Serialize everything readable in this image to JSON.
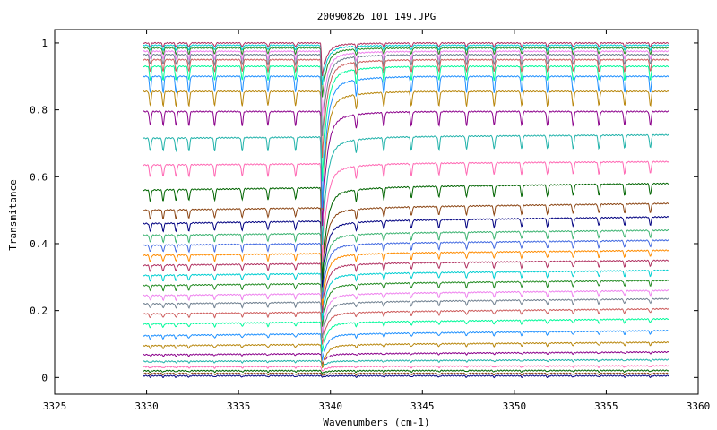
{
  "chart_data": {
    "type": "line",
    "title": "20090826_I01_149.JPG",
    "xlabel": "Wavenumbers (cm-1)",
    "ylabel": "Transmitance",
    "xlim": [
      3325,
      3360
    ],
    "ylim": [
      -0.05,
      1.04
    ],
    "x_ticks": [
      {
        "value": 3325,
        "label": "3325"
      },
      {
        "value": 3330,
        "label": "3330"
      },
      {
        "value": 3335,
        "label": "3335"
      },
      {
        "value": 3340,
        "label": "3340"
      },
      {
        "value": 3345,
        "label": "3345"
      },
      {
        "value": 3350,
        "label": "3350"
      },
      {
        "value": 3355,
        "label": "3355"
      },
      {
        "value": 3360,
        "label": "3360"
      }
    ],
    "y_ticks": [
      {
        "value": 0,
        "label": "0"
      },
      {
        "value": 0.2,
        "label": "0.2"
      },
      {
        "value": 0.4,
        "label": "0.4"
      },
      {
        "value": 0.6,
        "label": "0.6"
      },
      {
        "value": 0.8,
        "label": "0.8"
      },
      {
        "value": 1,
        "label": "1"
      }
    ],
    "grid": false,
    "legend": "none",
    "x_range": [
      3329.8,
      3358.4
    ],
    "main_absorption_center": 3339.55,
    "line_centers": [
      3330.2,
      3330.9,
      3331.6,
      3332.3,
      3333.7,
      3335.2,
      3336.6,
      3338.1,
      3341.4,
      3342.9,
      3344.4,
      3345.9,
      3347.4,
      3348.9,
      3350.4,
      3351.8,
      3353.2,
      3354.6,
      3356.0,
      3357.4
    ],
    "colors": [
      "#000080",
      "#8b4513",
      "#006400",
      "#ff69b4",
      "#20b2aa",
      "#8b008b",
      "#b8860b",
      "#1e90ff",
      "#00fa9a",
      "#cd5c5c",
      "#708090",
      "#ee82ee",
      "#228b22",
      "#00ced1",
      "#b03060",
      "#ff8c00",
      "#4169e1",
      "#3cb371"
    ],
    "series": [
      {
        "base": 0.005,
        "tilt": 0.0,
        "dip": 0.003
      },
      {
        "base": 0.012,
        "tilt": 0.0,
        "dip": 0.005
      },
      {
        "base": 0.02,
        "tilt": 0.001,
        "dip": 0.008
      },
      {
        "base": 0.032,
        "tilt": 0.003,
        "dip": 0.015
      },
      {
        "base": 0.048,
        "tilt": 0.005,
        "dip": 0.02
      },
      {
        "base": 0.068,
        "tilt": 0.008,
        "dip": 0.03
      },
      {
        "base": 0.095,
        "tilt": 0.01,
        "dip": 0.07
      },
      {
        "base": 0.125,
        "tilt": 0.015,
        "dip": 0.08
      },
      {
        "base": 0.16,
        "tilt": 0.015,
        "dip": 0.09
      },
      {
        "base": 0.19,
        "tilt": 0.015,
        "dip": 0.1
      },
      {
        "base": 0.22,
        "tilt": 0.015,
        "dip": 0.11
      },
      {
        "base": 0.245,
        "tilt": 0.015,
        "dip": 0.12
      },
      {
        "base": 0.275,
        "tilt": 0.015,
        "dip": 0.13
      },
      {
        "base": 0.305,
        "tilt": 0.015,
        "dip": 0.14
      },
      {
        "base": 0.335,
        "tilt": 0.015,
        "dip": 0.15
      },
      {
        "base": 0.365,
        "tilt": 0.015,
        "dip": 0.16
      },
      {
        "base": 0.395,
        "tilt": 0.015,
        "dip": 0.17
      },
      {
        "base": 0.425,
        "tilt": 0.015,
        "dip": 0.18
      },
      {
        "base": 0.46,
        "tilt": 0.02,
        "dip": 0.2
      },
      {
        "base": 0.5,
        "tilt": 0.02,
        "dip": 0.22
      },
      {
        "base": 0.56,
        "tilt": 0.02,
        "dip": 0.28
      },
      {
        "base": 0.635,
        "tilt": 0.01,
        "dip": 0.3
      },
      {
        "base": 0.715,
        "tilt": 0.01,
        "dip": 0.33
      },
      {
        "base": 0.795,
        "tilt": 0.0,
        "dip": 0.35
      },
      {
        "base": 0.855,
        "tilt": 0.0,
        "dip": 0.36
      },
      {
        "base": 0.9,
        "tilt": 0.0,
        "dip": 0.4
      },
      {
        "base": 0.93,
        "tilt": 0.0,
        "dip": 0.35
      },
      {
        "base": 0.95,
        "tilt": 0.0,
        "dip": 0.3
      },
      {
        "base": 0.965,
        "tilt": 0.0,
        "dip": 0.25
      },
      {
        "base": 0.975,
        "tilt": 0.0,
        "dip": 0.2
      },
      {
        "base": 0.985,
        "tilt": 0.0,
        "dip": 0.15
      },
      {
        "base": 0.993,
        "tilt": 0.0,
        "dip": 0.12
      },
      {
        "base": 1.0,
        "tilt": 0.0,
        "dip": 0.1
      }
    ]
  }
}
